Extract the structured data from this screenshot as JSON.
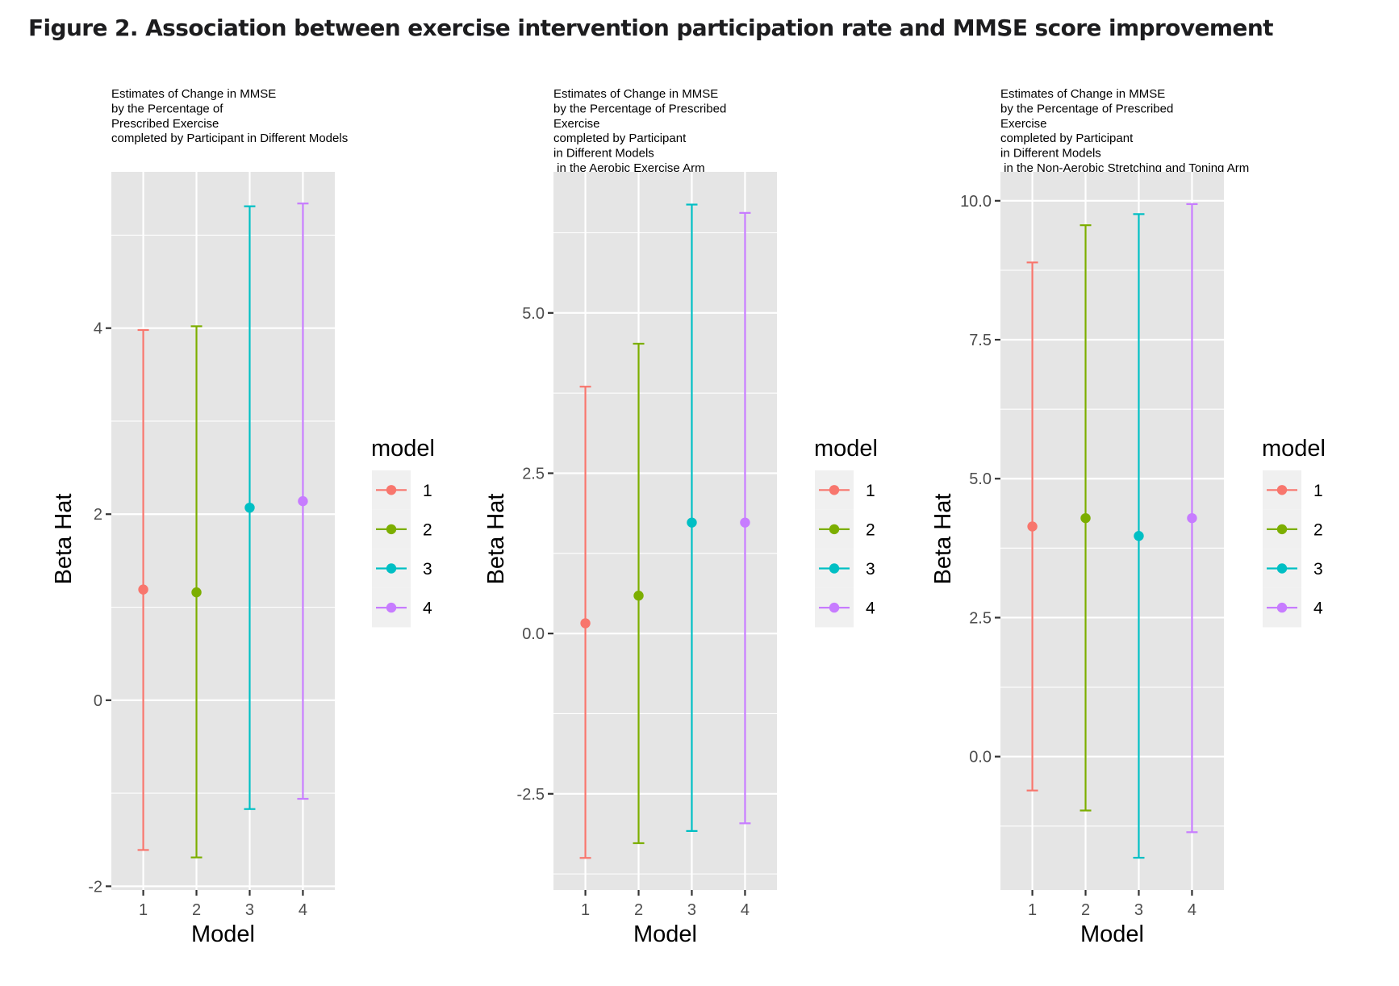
{
  "figure": {
    "title": "Figure 2. Association between exercise intervention participation rate and MMSE score improvement"
  },
  "colors": {
    "panel_background": "#e5e5e5",
    "grid": "#ffffff",
    "legend_key_background": "#f0f0f0",
    "model_1": "#f8766d",
    "model_2": "#7cae00",
    "model_3": "#00bfc4",
    "model_4": "#c77cff"
  },
  "chart_data": [
    {
      "type": "errorbar",
      "title_lines": [
        "Estimates of Change in MMSE",
        "by the Percentage of",
        "Prescribed Exercise",
        "completed by Participant in Different Models"
      ],
      "xlabel": "Model",
      "ylabel": "Beta Hat",
      "categories": [
        "1",
        "2",
        "3",
        "4"
      ],
      "ylim": [
        -2.04,
        5.68
      ],
      "y_ticks": [
        -2,
        0,
        2,
        4
      ],
      "y_tick_labels": [
        "-2",
        "0",
        "2",
        "4"
      ],
      "y_minor": [
        -1,
        1,
        3,
        5
      ],
      "grid": true,
      "legend": {
        "title": "model",
        "position": "right",
        "entries": [
          "1",
          "2",
          "3",
          "4"
        ]
      },
      "series": [
        {
          "name": "1",
          "estimate": 1.19,
          "lower": -1.61,
          "upper": 3.98
        },
        {
          "name": "2",
          "estimate": 1.16,
          "lower": -1.69,
          "upper": 4.02
        },
        {
          "name": "3",
          "estimate": 2.07,
          "lower": -1.17,
          "upper": 5.31
        },
        {
          "name": "4",
          "estimate": 2.14,
          "lower": -1.06,
          "upper": 5.34
        }
      ]
    },
    {
      "type": "errorbar",
      "title_lines": [
        "Estimates of Change in MMSE",
        "by the Percentage of Prescribed",
        "Exercise",
        "completed by Participant",
        "in Different Models",
        " in the Aerobic Exercise Arm"
      ],
      "xlabel": "Model",
      "ylabel": "Beta Hat",
      "categories": [
        "1",
        "2",
        "3",
        "4"
      ],
      "ylim": [
        -4.0,
        7.2
      ],
      "y_ticks": [
        -2.5,
        0,
        2.5,
        5
      ],
      "y_tick_labels": [
        "-2.5",
        "0.0",
        "2.5",
        "5.0"
      ],
      "y_minor": [
        -3.75,
        -1.25,
        1.25,
        3.75,
        6.25
      ],
      "grid": true,
      "legend": {
        "title": "model",
        "position": "right",
        "entries": [
          "1",
          "2",
          "3",
          "4"
        ]
      },
      "series": [
        {
          "name": "1",
          "estimate": 0.16,
          "lower": -3.5,
          "upper": 3.85
        },
        {
          "name": "2",
          "estimate": 0.59,
          "lower": -3.27,
          "upper": 4.52
        },
        {
          "name": "3",
          "estimate": 1.73,
          "lower": -3.08,
          "upper": 6.69
        },
        {
          "name": "4",
          "estimate": 1.73,
          "lower": -2.96,
          "upper": 6.56
        }
      ]
    },
    {
      "type": "errorbar",
      "title_lines": [
        "Estimates of Change in MMSE",
        "by the Percentage of Prescribed",
        "Exercise",
        "completed by Participant",
        "in Different Models",
        " in the Non-Aerobic Stretching and Toning Arm"
      ],
      "xlabel": "Model",
      "ylabel": "Beta Hat",
      "categories": [
        "1",
        "2",
        "3",
        "4"
      ],
      "ylim": [
        -2.4,
        10.52
      ],
      "y_ticks": [
        0,
        2.5,
        5,
        7.5,
        10
      ],
      "y_tick_labels": [
        "0.0",
        "2.5",
        "5.0",
        "7.5",
        "10.0"
      ],
      "y_minor": [
        -1.25,
        1.25,
        3.75,
        6.25,
        8.75
      ],
      "grid": true,
      "legend": {
        "title": "model",
        "position": "right",
        "entries": [
          "1",
          "2",
          "3",
          "4"
        ]
      },
      "series": [
        {
          "name": "1",
          "estimate": 4.14,
          "lower": -0.61,
          "upper": 8.89
        },
        {
          "name": "2",
          "estimate": 4.29,
          "lower": -0.97,
          "upper": 9.56
        },
        {
          "name": "3",
          "estimate": 3.97,
          "lower": -1.82,
          "upper": 9.76
        },
        {
          "name": "4",
          "estimate": 4.29,
          "lower": -1.36,
          "upper": 9.94
        }
      ]
    }
  ]
}
